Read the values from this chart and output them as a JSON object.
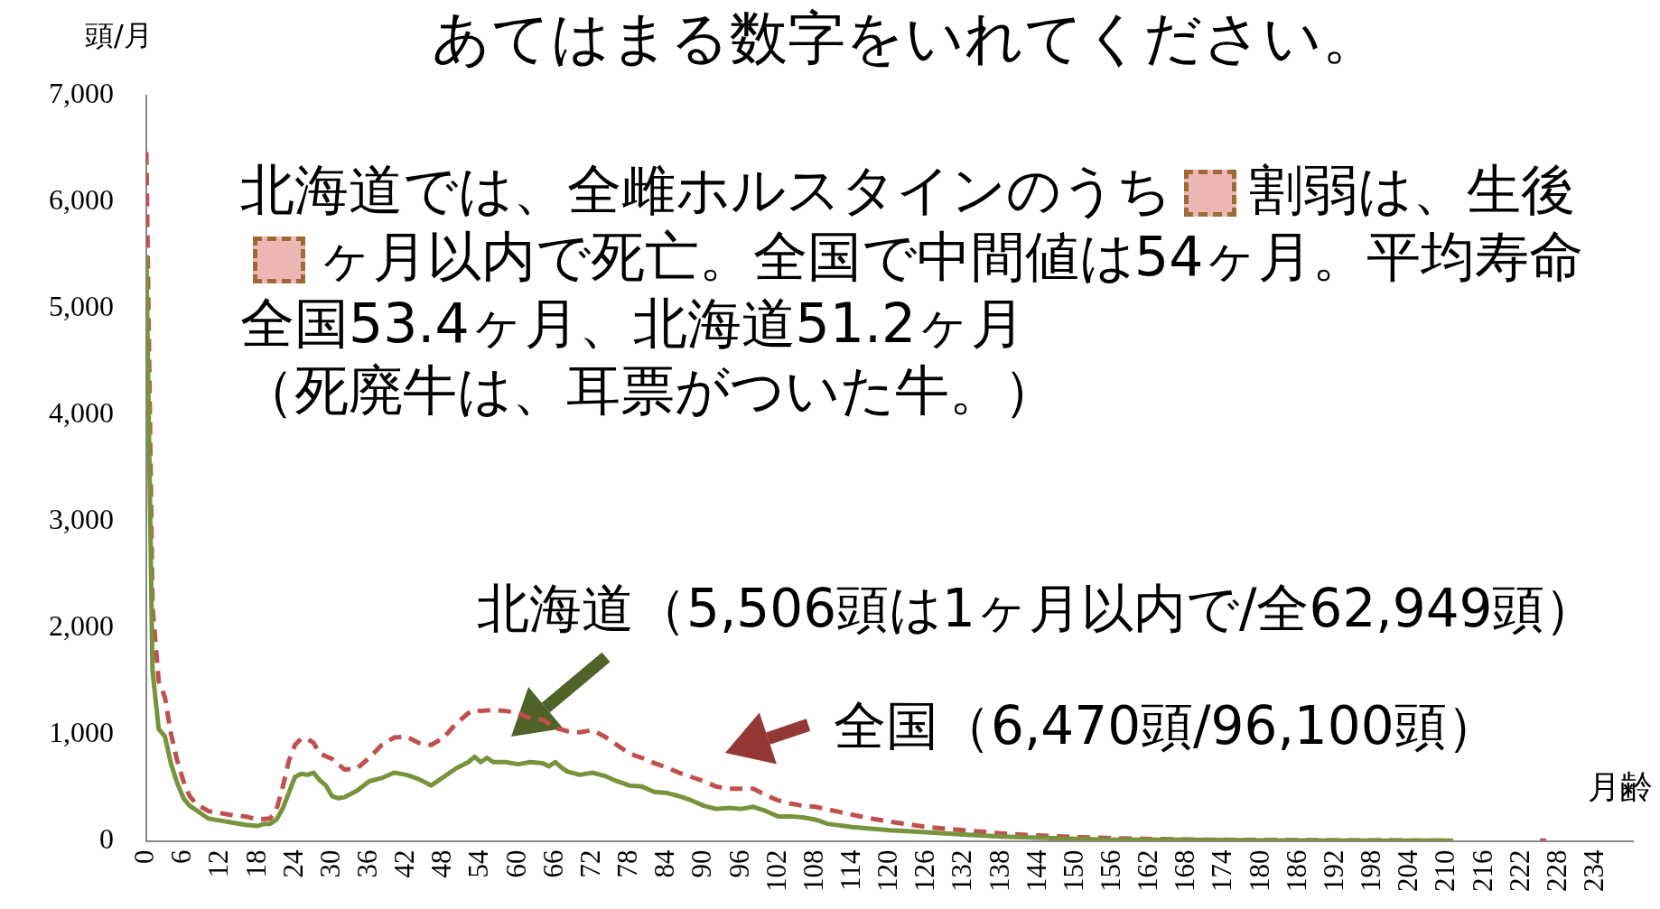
{
  "chart_data": {
    "type": "line",
    "title": "あてはまる数字をいれてください。",
    "xlabel": "月齢",
    "ylabel": "頭/月",
    "xlim": [
      0,
      240
    ],
    "xticks": [
      0,
      6,
      12,
      18,
      24,
      30,
      36,
      42,
      48,
      54,
      60,
      66,
      72,
      78,
      84,
      90,
      96,
      102,
      108,
      114,
      120,
      126,
      132,
      138,
      144,
      150,
      156,
      162,
      168,
      174,
      180,
      186,
      192,
      198,
      204,
      210,
      216,
      222,
      228,
      234
    ],
    "ylim": [
      0,
      7000
    ],
    "yticks": [
      0,
      {
        "value": 1000,
        "label": "1,000"
      },
      {
        "value": 2000,
        "label": "2,000"
      },
      {
        "value": 3000,
        "label": "3,000"
      },
      {
        "value": 4000,
        "label": "4,000"
      },
      {
        "value": 5000,
        "label": "5,000"
      },
      {
        "value": 6000,
        "label": "6,000"
      },
      {
        "value": 7000,
        "label": "7,000"
      }
    ],
    "grid": false,
    "legend": false,
    "marker": "none",
    "series": [
      {
        "color": "#77933c",
        "line_style": "solid",
        "x": [
          0,
          1,
          2,
          3,
          4,
          5,
          6,
          7,
          8,
          10,
          12,
          14,
          16,
          18,
          19,
          20,
          21,
          22,
          23,
          24,
          25,
          26,
          27,
          28,
          29,
          30,
          31,
          32,
          34,
          36,
          38,
          40,
          42,
          44,
          46,
          48,
          50,
          52,
          53,
          54,
          55,
          56,
          58,
          60,
          62,
          64,
          65,
          66,
          67,
          68,
          70,
          72,
          74,
          76,
          78,
          80,
          82,
          84,
          86,
          88,
          90,
          92,
          94,
          96,
          98,
          100,
          102,
          104,
          106,
          108,
          110,
          114,
          120,
          126,
          132,
          138,
          144,
          150,
          156,
          162,
          168,
          180,
          200,
          211
        ],
        "values": [
          5506,
          1600,
          1050,
          980,
          720,
          540,
          400,
          330,
          290,
          210,
          190,
          170,
          150,
          140,
          160,
          160,
          200,
          300,
          450,
          600,
          630,
          620,
          640,
          570,
          520,
          420,
          400,
          410,
          470,
          560,
          590,
          640,
          620,
          580,
          520,
          600,
          680,
          740,
          790,
          740,
          780,
          740,
          740,
          720,
          740,
          730,
          700,
          740,
          690,
          650,
          620,
          640,
          610,
          560,
          520,
          510,
          460,
          450,
          420,
          380,
          330,
          300,
          310,
          300,
          320,
          280,
          230,
          230,
          220,
          200,
          160,
          130,
          100,
          80,
          60,
          40,
          30,
          20,
          10,
          10,
          10,
          5,
          3,
          2
        ]
      },
      {
        "color": "#c0504d",
        "line_style": "dashed",
        "x": [
          0,
          1,
          2,
          3,
          4,
          5,
          6,
          7,
          8,
          10,
          12,
          14,
          16,
          18,
          20,
          21,
          22,
          23,
          24,
          25,
          26,
          27,
          28,
          30,
          32,
          34,
          36,
          38,
          40,
          42,
          44,
          46,
          48,
          50,
          52,
          53,
          54,
          56,
          58,
          60,
          62,
          64,
          66,
          68,
          70,
          72,
          74,
          76,
          78,
          80,
          82,
          84,
          86,
          88,
          90,
          92,
          94,
          96,
          98,
          100,
          102,
          104,
          106,
          108,
          112,
          116,
          120,
          126,
          132,
          138,
          144,
          150,
          156,
          162,
          168,
          174,
          180,
          190,
          204,
          210,
          218,
          225,
          226
        ],
        "values": [
          6470,
          2200,
          1500,
          1350,
          1000,
          750,
          560,
          420,
          350,
          280,
          260,
          240,
          230,
          200,
          210,
          290,
          500,
          750,
          900,
          960,
          960,
          920,
          820,
          770,
          670,
          680,
          780,
          900,
          970,
          980,
          920,
          900,
          970,
          1100,
          1200,
          1230,
          1220,
          1230,
          1220,
          1200,
          1150,
          1140,
          1060,
          1030,
          1020,
          1040,
          980,
          900,
          820,
          780,
          730,
          690,
          640,
          600,
          560,
          510,
          490,
          490,
          490,
          430,
          380,
          350,
          330,
          320,
          270,
          220,
          180,
          130,
          100,
          70,
          50,
          35,
          25,
          18,
          12,
          10,
          8,
          5,
          3,
          2,
          null,
          2,
          2
        ]
      }
    ],
    "annotations": [
      "北海道では、全雌ホルスタインのうち",
      "割弱は、生後",
      "ヶ月以内で死亡。全国で中間値は54ヶ月。平均寿命全国53.4ヶ月、北海道51.2ヶ月",
      "（死廃牛は、耳票がついた牛。）",
      "北海道（5,506頭は1ヶ月以内で/全62,949頭）",
      "全国（6,470頭/96,100頭）"
    ]
  }
}
